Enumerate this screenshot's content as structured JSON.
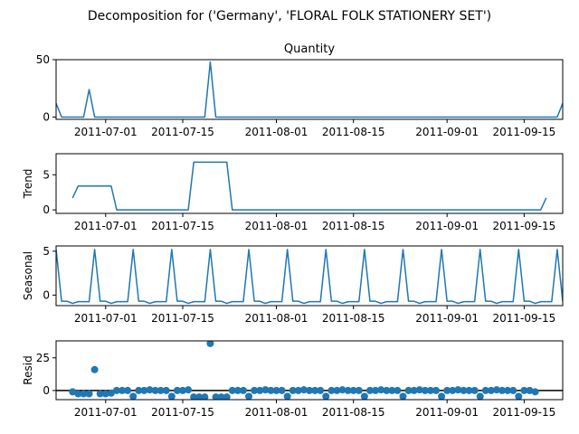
{
  "chart_data": {
    "type": "line",
    "suptitle": "Decomposition for ('Germany', 'FLORAL FOLK STATIONERY SET')",
    "x_start": "2011-06-22",
    "x_end": "2011-09-22",
    "x_ticks": [
      "2011-07-01",
      "2011-07-15",
      "2011-08-01",
      "2011-08-15",
      "2011-09-01",
      "2011-09-15"
    ],
    "colors": {
      "series": "#1f77b4",
      "axis": "#000000",
      "zero_line": "#000000"
    },
    "panels": [
      {
        "title": "Quantity",
        "ylabel": "",
        "kind": "line",
        "ylim": [
          -2,
          50
        ],
        "yticks": [
          0,
          50
        ],
        "points": [
          [
            "2011-06-22",
            12
          ],
          [
            "2011-06-23",
            0
          ],
          [
            "2011-06-27",
            0
          ],
          [
            "2011-06-28",
            24
          ],
          [
            "2011-06-29",
            0
          ],
          [
            "2011-07-19",
            0
          ],
          [
            "2011-07-20",
            48
          ],
          [
            "2011-07-21",
            0
          ],
          [
            "2011-09-21",
            0
          ],
          [
            "2011-09-22",
            12
          ]
        ]
      },
      {
        "title": "",
        "ylabel": "Trend",
        "kind": "line",
        "ylim": [
          -0.5,
          8
        ],
        "yticks": [
          0,
          5
        ],
        "points": [
          [
            "2011-06-25",
            1.7
          ],
          [
            "2011-06-26",
            3.4
          ],
          [
            "2011-07-02",
            3.4
          ],
          [
            "2011-07-03",
            0
          ],
          [
            "2011-07-16",
            0
          ],
          [
            "2011-07-17",
            6.8
          ],
          [
            "2011-07-23",
            6.8
          ],
          [
            "2011-07-24",
            0
          ],
          [
            "2011-09-18",
            0
          ],
          [
            "2011-09-19",
            1.7
          ]
        ]
      },
      {
        "title": "",
        "ylabel": "Seasonal",
        "kind": "seasonal",
        "ylim": [
          -1.2,
          5.6
        ],
        "yticks": [
          0,
          5
        ],
        "cycle_start": "2011-06-22",
        "period": 7,
        "cycle_values": [
          5.2,
          -0.7,
          -0.7,
          -0.95,
          -0.75,
          -0.75,
          -0.75
        ]
      },
      {
        "title": "",
        "ylabel": "Resid",
        "kind": "scatter",
        "ylim": [
          -7,
          38
        ],
        "yticks": [
          0,
          25
        ],
        "zero_line": true,
        "points": [
          [
            "2011-06-25",
            -1
          ],
          [
            "2011-06-26",
            -2.5
          ],
          [
            "2011-06-27",
            -2.5
          ],
          [
            "2011-06-28",
            -2.5
          ],
          [
            "2011-06-29",
            16
          ],
          [
            "2011-06-30",
            -2.5
          ],
          [
            "2011-07-01",
            -2.5
          ],
          [
            "2011-07-02",
            -2
          ],
          [
            "2011-07-03",
            0
          ],
          [
            "2011-07-04",
            0
          ],
          [
            "2011-07-05",
            0
          ],
          [
            "2011-07-06",
            -4.5
          ],
          [
            "2011-07-07",
            0
          ],
          [
            "2011-07-08",
            0
          ],
          [
            "2011-07-09",
            0.5
          ],
          [
            "2011-07-10",
            0
          ],
          [
            "2011-07-11",
            0
          ],
          [
            "2011-07-12",
            0
          ],
          [
            "2011-07-13",
            -4.5
          ],
          [
            "2011-07-14",
            0
          ],
          [
            "2011-07-15",
            0
          ],
          [
            "2011-07-16",
            0.5
          ],
          [
            "2011-07-17",
            -5
          ],
          [
            "2011-07-18",
            -5
          ],
          [
            "2011-07-19",
            -5
          ],
          [
            "2011-07-20",
            36
          ],
          [
            "2011-07-21",
            -5
          ],
          [
            "2011-07-22",
            -5
          ],
          [
            "2011-07-23",
            -5
          ],
          [
            "2011-07-24",
            0
          ],
          [
            "2011-07-25",
            0
          ],
          [
            "2011-07-26",
            0
          ],
          [
            "2011-07-27",
            -4.5
          ],
          [
            "2011-07-28",
            0
          ],
          [
            "2011-07-29",
            0
          ],
          [
            "2011-07-30",
            0.5
          ],
          [
            "2011-07-31",
            0
          ],
          [
            "2011-08-01",
            0
          ],
          [
            "2011-08-02",
            0
          ],
          [
            "2011-08-03",
            -4.5
          ],
          [
            "2011-08-04",
            0
          ],
          [
            "2011-08-05",
            0
          ],
          [
            "2011-08-06",
            0.5
          ],
          [
            "2011-08-07",
            0
          ],
          [
            "2011-08-08",
            0
          ],
          [
            "2011-08-09",
            0
          ],
          [
            "2011-08-10",
            -4.5
          ],
          [
            "2011-08-11",
            0
          ],
          [
            "2011-08-12",
            0
          ],
          [
            "2011-08-13",
            0.5
          ],
          [
            "2011-08-14",
            0
          ],
          [
            "2011-08-15",
            0
          ],
          [
            "2011-08-16",
            0
          ],
          [
            "2011-08-17",
            -4.5
          ],
          [
            "2011-08-18",
            0
          ],
          [
            "2011-08-19",
            0
          ],
          [
            "2011-08-20",
            0.5
          ],
          [
            "2011-08-21",
            0
          ],
          [
            "2011-08-22",
            0
          ],
          [
            "2011-08-23",
            0
          ],
          [
            "2011-08-24",
            -4.5
          ],
          [
            "2011-08-25",
            0
          ],
          [
            "2011-08-26",
            0
          ],
          [
            "2011-08-27",
            0.5
          ],
          [
            "2011-08-28",
            0
          ],
          [
            "2011-08-29",
            0
          ],
          [
            "2011-08-30",
            0
          ],
          [
            "2011-08-31",
            -4.5
          ],
          [
            "2011-09-01",
            0
          ],
          [
            "2011-09-02",
            0
          ],
          [
            "2011-09-03",
            0.5
          ],
          [
            "2011-09-04",
            0
          ],
          [
            "2011-09-05",
            0
          ],
          [
            "2011-09-06",
            0
          ],
          [
            "2011-09-07",
            -4.5
          ],
          [
            "2011-09-08",
            0
          ],
          [
            "2011-09-09",
            0
          ],
          [
            "2011-09-10",
            0.5
          ],
          [
            "2011-09-11",
            0
          ],
          [
            "2011-09-12",
            0
          ],
          [
            "2011-09-13",
            0
          ],
          [
            "2011-09-14",
            -4.5
          ],
          [
            "2011-09-15",
            0
          ],
          [
            "2011-09-16",
            0
          ],
          [
            "2011-09-17",
            -1
          ]
        ]
      }
    ]
  }
}
